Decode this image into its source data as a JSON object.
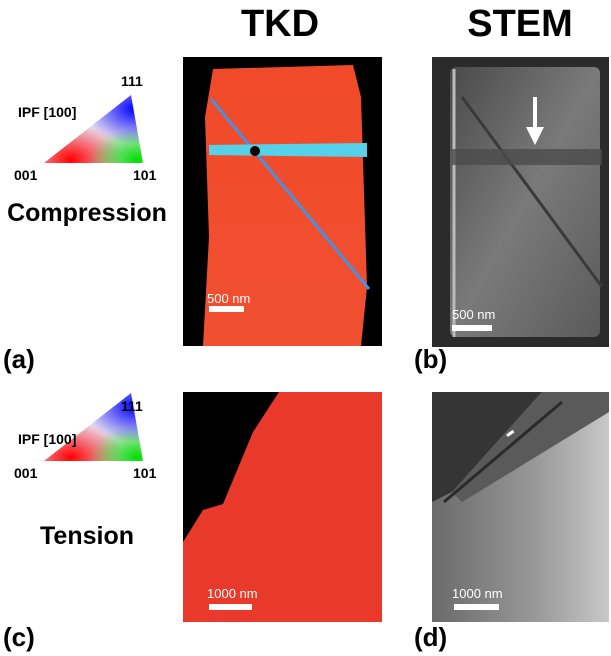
{
  "columns": {
    "tkd": "TKD",
    "stem": "STEM"
  },
  "rows": [
    {
      "label": "Compression",
      "legend": {
        "ipf_label": "IPF [100]",
        "corner_top": "111",
        "corner_left": "001",
        "corner_right": "101"
      },
      "panels": [
        {
          "letter": "(a)",
          "scale_text": "500 nm"
        },
        {
          "letter": "(b)",
          "scale_text": "500 nm"
        }
      ]
    },
    {
      "label": "Tension",
      "legend": {
        "ipf_label": "IPF [100]",
        "corner_top": "111",
        "corner_left": "001",
        "corner_right": "101"
      },
      "panels": [
        {
          "letter": "(c)",
          "scale_text": "1000 nm"
        },
        {
          "letter": "(d)",
          "scale_text": "1000 nm"
        }
      ]
    }
  ]
}
